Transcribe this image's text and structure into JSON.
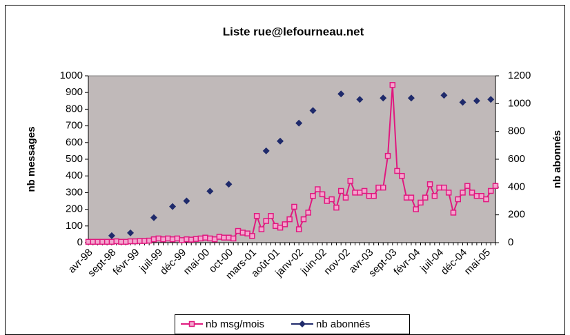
{
  "chart_data": {
    "type": "line",
    "title": "Liste rue@lefourneau.net",
    "y_label": "nb messages",
    "y2_label": "nb abonnés",
    "categories": [
      "avr-98",
      null,
      null,
      null,
      null,
      "sept-98",
      null,
      null,
      null,
      null,
      "févr-99",
      null,
      null,
      null,
      null,
      "juil-99",
      null,
      null,
      null,
      null,
      "déc-99",
      null,
      null,
      null,
      null,
      "mai-00",
      null,
      null,
      null,
      null,
      "oct-00",
      null,
      null,
      null,
      null,
      "mars-01",
      null,
      null,
      null,
      null,
      "août-01",
      null,
      null,
      null,
      null,
      "janv-02",
      null,
      null,
      null,
      null,
      "juin-02",
      null,
      null,
      null,
      null,
      "nov-02",
      null,
      null,
      null,
      null,
      "avr-03",
      null,
      null,
      null,
      null,
      "sept-03",
      null,
      null,
      null,
      null,
      "févr-04",
      null,
      null,
      null,
      null,
      "juil-04",
      null,
      null,
      null,
      null,
      "déc-04",
      null,
      null,
      null,
      null,
      "mai-05",
      null,
      null
    ],
    "series": [
      {
        "name": "nb msg/mois",
        "color": "#e0197f",
        "marker": "square",
        "line": true,
        "values": [
          5,
          5,
          5,
          5,
          5,
          5,
          8,
          5,
          5,
          8,
          8,
          10,
          10,
          12,
          20,
          25,
          20,
          25,
          20,
          25,
          15,
          20,
          18,
          22,
          25,
          30,
          25,
          20,
          35,
          30,
          30,
          25,
          70,
          60,
          55,
          40,
          160,
          80,
          130,
          160,
          100,
          90,
          110,
          140,
          215,
          80,
          140,
          180,
          280,
          320,
          290,
          250,
          260,
          210,
          310,
          270,
          370,
          300,
          300,
          310,
          280,
          280,
          330,
          330,
          520,
          945,
          430,
          400,
          270,
          270,
          200,
          240,
          270,
          350,
          280,
          330,
          330,
          300,
          180,
          260,
          300,
          340,
          300,
          280,
          280,
          260,
          310,
          340
        ]
      },
      {
        "name": "nb abonnés",
        "color": "#1f2a6b",
        "marker": "diamond",
        "line": false,
        "axis": "y2",
        "values": [
          null,
          null,
          null,
          null,
          null,
          50,
          null,
          null,
          null,
          70,
          null,
          null,
          null,
          null,
          180,
          null,
          null,
          null,
          260,
          null,
          null,
          300,
          null,
          null,
          null,
          null,
          370,
          null,
          null,
          null,
          420,
          null,
          null,
          null,
          null,
          null,
          null,
          null,
          660,
          null,
          null,
          730,
          null,
          null,
          null,
          860,
          null,
          null,
          950,
          null,
          null,
          null,
          null,
          null,
          1070,
          null,
          null,
          null,
          1030,
          null,
          null,
          null,
          null,
          1040,
          null,
          null,
          null,
          null,
          null,
          1040,
          null,
          null,
          null,
          null,
          null,
          null,
          1060,
          null,
          null,
          null,
          1010,
          null,
          null,
          1020,
          null,
          null,
          1030,
          null
        ]
      }
    ],
    "ylim": [
      0,
      1000
    ],
    "yticks": [
      0,
      100,
      200,
      300,
      400,
      500,
      600,
      700,
      800,
      900,
      1000
    ],
    "y2lim": [
      0,
      1200
    ],
    "y2ticks": [
      0,
      200,
      400,
      600,
      800,
      1000,
      1200
    ],
    "plot_background": "#c0b9b9"
  }
}
